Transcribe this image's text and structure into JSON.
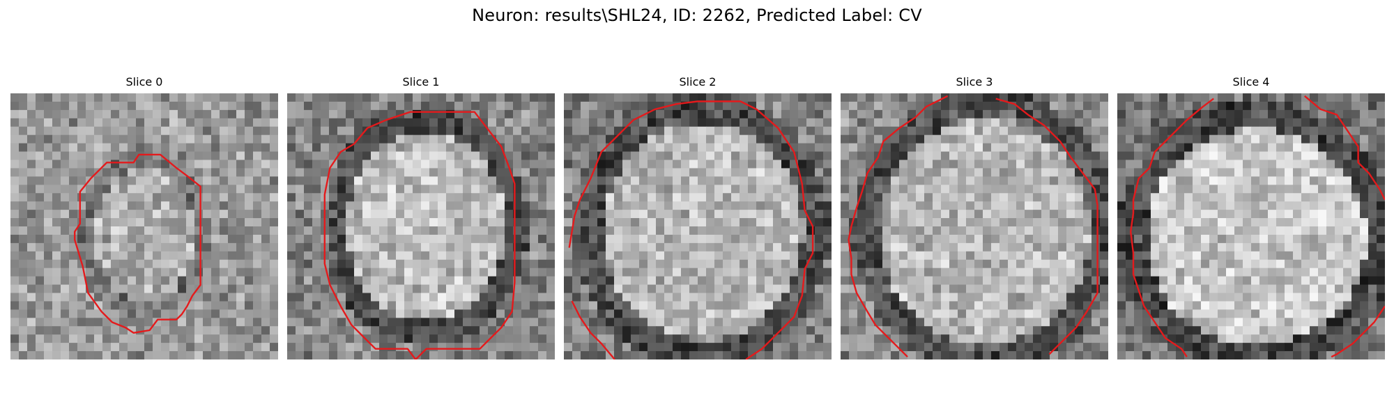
{
  "figure": {
    "title": "Neuron: results\\SHL24, ID: 2262, Predicted Label: CV"
  },
  "panels": [
    {
      "title": "Slice 0"
    },
    {
      "title": "Slice 1"
    },
    {
      "title": "Slice 2"
    },
    {
      "title": "Slice 3"
    },
    {
      "title": "Slice 4"
    }
  ],
  "colors": {
    "contour": "#e41a1c",
    "colormap": "gray"
  }
}
